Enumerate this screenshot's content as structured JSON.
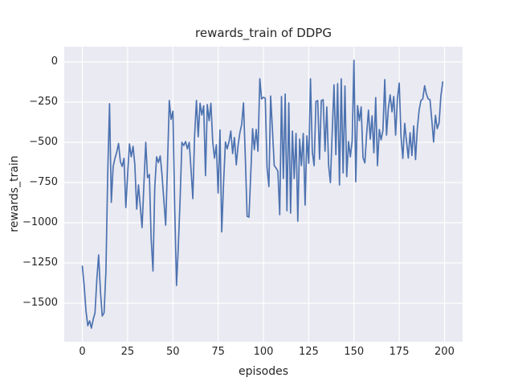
{
  "chart_data": {
    "type": "line",
    "title": "rewards_train of DDPG",
    "xlabel": "episodes",
    "ylabel": "rewards_train",
    "grid": true,
    "legend": "none",
    "axes_bg": "#eaeaf2",
    "grid_color": "#ffffff",
    "line_color": "#4c72b0",
    "text_color": "#262626",
    "xlim": [
      -10,
      210
    ],
    "ylim": [
      -1740,
      95
    ],
    "x_ticks": [
      0,
      25,
      50,
      75,
      100,
      125,
      150,
      175,
      200
    ],
    "x_tick_labels": [
      "0",
      "25",
      "50",
      "75",
      "100",
      "125",
      "150",
      "175",
      "200"
    ],
    "y_ticks": [
      0,
      -250,
      -500,
      -750,
      -1000,
      -1250,
      -1500
    ],
    "y_tick_labels": [
      "0",
      "−250",
      "−500",
      "−750",
      "−1000",
      "−1250",
      "−1500"
    ],
    "x_start": 0,
    "x_step": 1,
    "series_name": "rewards_train",
    "values": [
      -1270,
      -1390,
      -1550,
      -1640,
      -1610,
      -1655,
      -1600,
      -1560,
      -1350,
      -1200,
      -1430,
      -1580,
      -1560,
      -1300,
      -700,
      -260,
      -873,
      -650,
      -600,
      -560,
      -507,
      -620,
      -650,
      -600,
      -905,
      -700,
      -510,
      -590,
      -525,
      -640,
      -915,
      -765,
      -900,
      -1030,
      -760,
      -500,
      -720,
      -700,
      -1100,
      -1300,
      -780,
      -590,
      -625,
      -585,
      -700,
      -860,
      -1015,
      -650,
      -240,
      -357,
      -307,
      -900,
      -1390,
      -1150,
      -850,
      -500,
      -520,
      -495,
      -540,
      -500,
      -665,
      -850,
      -460,
      -240,
      -465,
      -257,
      -330,
      -273,
      -707,
      -265,
      -365,
      -257,
      -498,
      -598,
      -515,
      -815,
      -423,
      -1057,
      -750,
      -498,
      -540,
      -495,
      -430,
      -570,
      -470,
      -640,
      -520,
      -440,
      -390,
      -255,
      -600,
      -960,
      -965,
      -700,
      -415,
      -545,
      -420,
      -555,
      -105,
      -230,
      -220,
      -225,
      -655,
      -775,
      -212,
      -430,
      -645,
      -660,
      -680,
      -950,
      -215,
      -725,
      -200,
      -925,
      -255,
      -940,
      -430,
      -725,
      -445,
      -990,
      -480,
      -645,
      -445,
      -890,
      -460,
      -630,
      -105,
      -560,
      -645,
      -245,
      -240,
      -605,
      -240,
      -235,
      -555,
      -280,
      -645,
      -750,
      -430,
      -143,
      -577,
      -135,
      -765,
      -105,
      -690,
      -150,
      -713,
      -495,
      -590,
      -490,
      10,
      -745,
      -272,
      -365,
      -280,
      -595,
      -628,
      -450,
      -300,
      -480,
      -335,
      -565,
      -222,
      -645,
      -420,
      -485,
      -425,
      -110,
      -455,
      -285,
      -205,
      -310,
      -215,
      -455,
      -230,
      -132,
      -460,
      -600,
      -382,
      -490,
      -598,
      -440,
      -582,
      -398,
      -607,
      -415,
      -298,
      -240,
      -230,
      -148,
      -200,
      -230,
      -235,
      -365,
      -498,
      -332,
      -415,
      -380,
      -215,
      -125
    ]
  }
}
